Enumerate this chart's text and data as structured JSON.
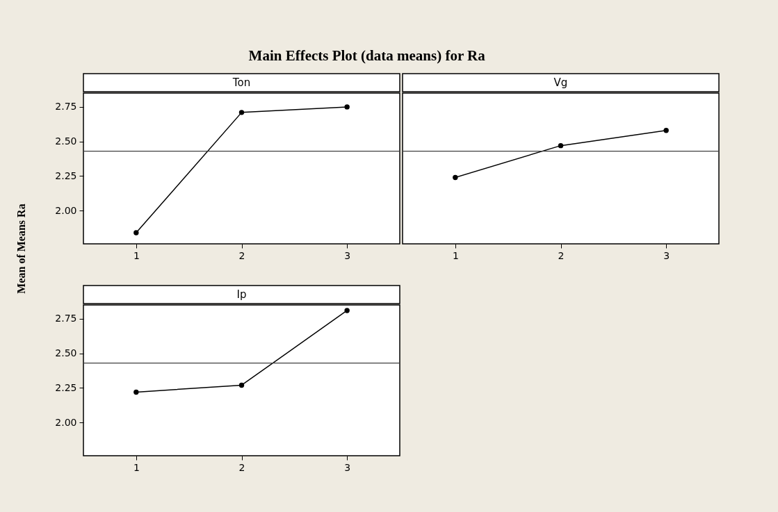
{
  "chart_data": [
    {
      "type": "line",
      "title": "Ton",
      "ylabel": "Mean of Means Ra",
      "annotations": [
        "Main Effects Plot (data means) for Ra"
      ],
      "x": [
        1,
        2,
        3
      ],
      "xlim": [
        0.5,
        3.5
      ],
      "xticks": [
        1,
        2,
        3
      ],
      "ylim": [
        1.76,
        2.85
      ],
      "yticks": [
        {
          "value": 2.0,
          "label": "2.00"
        },
        {
          "value": 2.25,
          "label": "2.25"
        },
        {
          "value": 2.5,
          "label": "2.50"
        },
        {
          "value": 2.75,
          "label": "2.75"
        }
      ],
      "grid": false,
      "marker": "circle",
      "line_style": "solid",
      "series": [
        {
          "color": "#000000",
          "values": [
            1.84,
            2.71,
            2.75
          ]
        }
      ],
      "ref_lines": [
        {
          "axis": "y",
          "value": 2.43,
          "color": "#404040"
        }
      ]
    },
    {
      "type": "line",
      "title": "Vg",
      "x": [
        1,
        2,
        3
      ],
      "xlim": [
        0.5,
        3.5
      ],
      "xticks": [
        1,
        2,
        3
      ],
      "ylim": [
        1.76,
        2.85
      ],
      "tick_labels": "x",
      "grid": false,
      "marker": "circle",
      "line_style": "solid",
      "series": [
        {
          "color": "#000000",
          "values": [
            2.24,
            2.47,
            2.58
          ]
        }
      ],
      "ref_lines": [
        {
          "axis": "y",
          "value": 2.43,
          "color": "#404040"
        }
      ]
    },
    {
      "type": "line",
      "title": "Ip",
      "x": [
        1,
        2,
        3
      ],
      "xlim": [
        0.5,
        3.5
      ],
      "xticks": [
        1,
        2,
        3
      ],
      "ylim": [
        1.76,
        2.85
      ],
      "yticks": [
        {
          "value": 2.0,
          "label": "2.00"
        },
        {
          "value": 2.25,
          "label": "2.25"
        },
        {
          "value": 2.5,
          "label": "2.50"
        },
        {
          "value": 2.75,
          "label": "2.75"
        }
      ],
      "grid": false,
      "marker": "circle",
      "line_style": "solid",
      "series": [
        {
          "color": "#000000",
          "values": [
            2.22,
            2.27,
            2.81
          ]
        }
      ],
      "ref_lines": [
        {
          "axis": "y",
          "value": 2.43,
          "color": "#404040"
        }
      ]
    }
  ]
}
